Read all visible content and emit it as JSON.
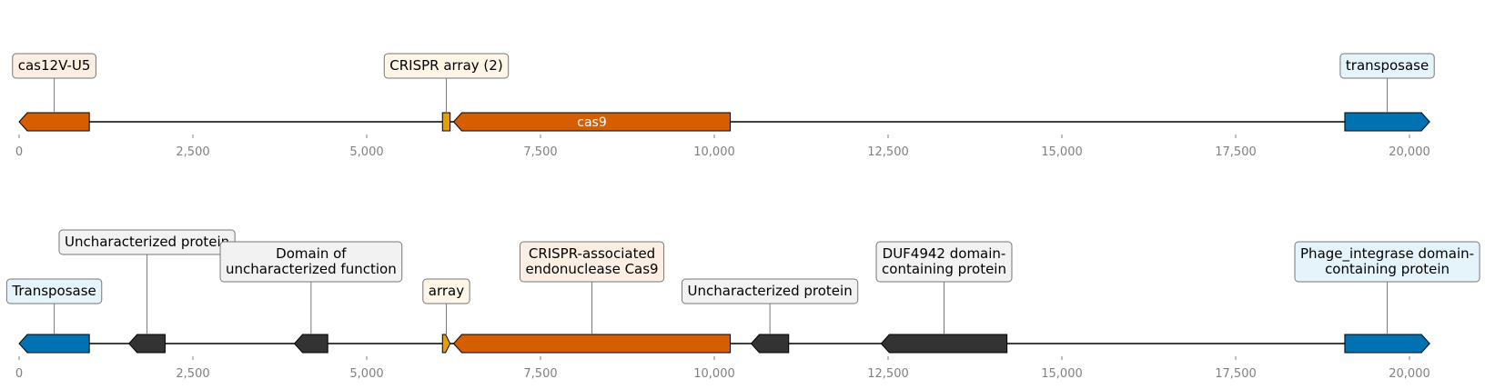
{
  "tracks": [
    {
      "id": "track-1",
      "axis": {
        "min": 0,
        "max": 20000,
        "ticks": [
          0,
          2500,
          5000,
          7500,
          10000,
          12500,
          15000,
          17500,
          20000
        ],
        "tick_labels": [
          "0",
          "2,500",
          "5,000",
          "7,500",
          "10,000",
          "12,500",
          "15,000",
          "17,500",
          "20,000"
        ]
      },
      "features": [
        {
          "name": "cas12V-U5",
          "start": 0,
          "end": 1010,
          "strand": -1,
          "color": "#d55e00",
          "label": "cas12V-U5",
          "label_box": "#fbeee2",
          "label_level": 0
        },
        {
          "name": "crispr-array",
          "start": 6090,
          "end": 6200,
          "strand": 0,
          "color": "#e69f00",
          "label": "CRISPR array (2)",
          "label_box": "#fdf5e5",
          "label_level": 0
        },
        {
          "name": "cas9",
          "start": 6250,
          "end": 10230,
          "strand": -1,
          "color": "#d55e00",
          "inner_label": "cas9"
        },
        {
          "name": "transposase",
          "start": 19070,
          "end": 20290,
          "strand": 1,
          "color": "#0072b2",
          "label": "transposase",
          "label_box": "#e5f3fb",
          "label_level": 0
        }
      ]
    },
    {
      "id": "track-2",
      "axis": {
        "min": 0,
        "max": 20000,
        "ticks": [
          0,
          2500,
          5000,
          7500,
          10000,
          12500,
          15000,
          17500,
          20000
        ],
        "tick_labels": [
          "0",
          "2,500",
          "5,000",
          "7,500",
          "10,000",
          "12,500",
          "15,000",
          "17,500",
          "20,000"
        ]
      },
      "features": [
        {
          "name": "transposase",
          "start": 0,
          "end": 1010,
          "strand": -1,
          "color": "#0072b2",
          "label": "Transposase",
          "label_box": "#e5f3fb",
          "label_level": 0
        },
        {
          "name": "uncharacterized-1",
          "start": 1580,
          "end": 2100,
          "strand": -1,
          "color": "#333333",
          "label": "Uncharacterized protein",
          "label_box": "#f2f2f2",
          "label_level": 2
        },
        {
          "name": "duf-function",
          "start": 3960,
          "end": 4440,
          "strand": -1,
          "color": "#333333",
          "label": "Domain of\nuncharacterized function",
          "label_box": "#f2f2f2",
          "label_level": 1
        },
        {
          "name": "array",
          "start": 6090,
          "end": 6200,
          "strand": 1,
          "color": "#e69f00",
          "label": "array",
          "label_box": "#fdf5e5",
          "label_level": 0
        },
        {
          "name": "cas9",
          "start": 6250,
          "end": 10230,
          "strand": -1,
          "color": "#d55e00",
          "label": "CRISPR-associated\nendonuclease Cas9",
          "label_box": "#fbeee2",
          "label_level": 1
        },
        {
          "name": "uncharacterized-2",
          "start": 10530,
          "end": 11070,
          "strand": -1,
          "color": "#333333",
          "label": "Uncharacterized protein",
          "label_box": "#f2f2f2",
          "label_level": 0
        },
        {
          "name": "duf4942",
          "start": 12400,
          "end": 14210,
          "strand": -1,
          "color": "#333333",
          "label": "DUF4942 domain-\ncontaining protein",
          "label_box": "#f2f2f2",
          "label_level": 1
        },
        {
          "name": "phage-integrase",
          "start": 19070,
          "end": 20290,
          "strand": 1,
          "color": "#0072b2",
          "label": "Phage_integrase domain-\ncontaining protein",
          "label_box": "#e5f3fb",
          "label_level": 1
        }
      ]
    }
  ]
}
